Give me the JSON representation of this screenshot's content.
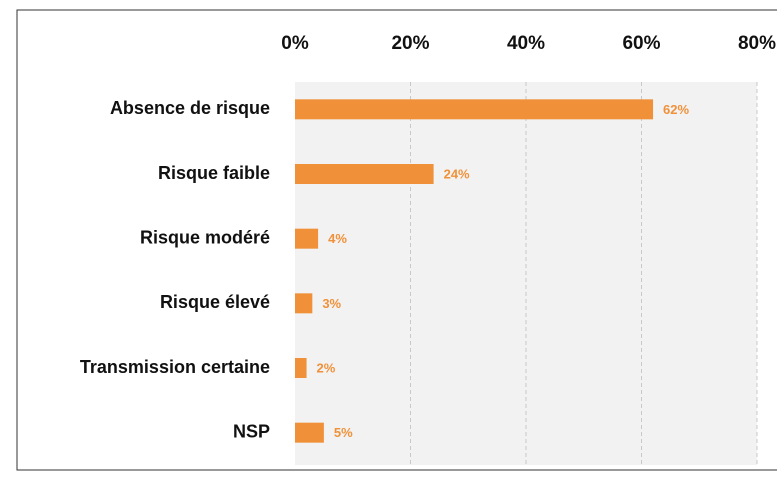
{
  "chart_data": {
    "type": "bar",
    "orientation": "horizontal",
    "categories": [
      "Absence de risque",
      "Risque faible",
      "Risque modéré",
      "Risque élevé",
      "Transmission certaine",
      "NSP"
    ],
    "values": [
      62,
      24,
      4,
      3,
      2,
      5
    ],
    "value_labels": [
      "62%",
      "24%",
      "4%",
      "3%",
      "2%",
      "5%"
    ],
    "color": "#f0913a",
    "xlim": [
      0,
      80
    ],
    "xticks": [
      {
        "value": 0,
        "label": "0%"
      },
      {
        "value": 20,
        "label": "20%"
      },
      {
        "value": 40,
        "label": "40%"
      },
      {
        "value": 60,
        "label": "60%"
      },
      {
        "value": 80,
        "label": "80%"
      }
    ],
    "grid": true
  }
}
